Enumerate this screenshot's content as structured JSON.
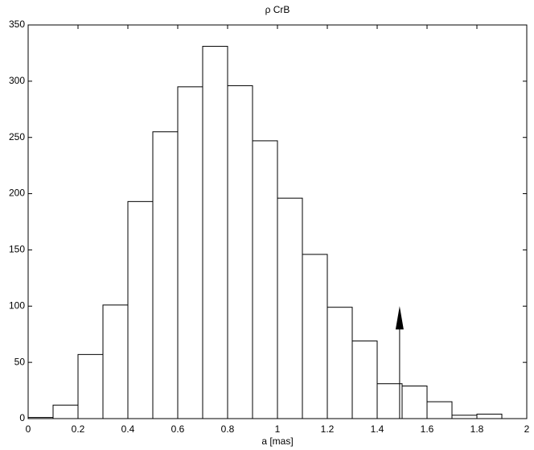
{
  "chart_data": {
    "type": "histogram",
    "title": "ρ CrB",
    "xlabel": "a [mas]",
    "bins": [
      0,
      0.1,
      0.2,
      0.3,
      0.4,
      0.5,
      0.6,
      0.7,
      0.8,
      0.9,
      1.0,
      1.1,
      1.2,
      1.3,
      1.4,
      1.5,
      1.6,
      1.7,
      1.8,
      1.9
    ],
    "values": [
      1,
      12,
      57,
      101,
      193,
      255,
      295,
      331,
      296,
      247,
      196,
      146,
      99,
      69,
      31,
      29,
      15,
      3,
      4
    ],
    "color": "#ffffff",
    "edgecolor": "#000000",
    "xlim": [
      0,
      2
    ],
    "xticks": [
      0,
      0.2,
      0.4,
      0.6,
      0.8,
      1,
      1.2,
      1.4,
      1.6,
      1.8,
      2
    ],
    "ylim": [
      0,
      350
    ],
    "yticks": [
      0,
      50,
      100,
      150,
      200,
      250,
      300,
      350
    ],
    "arrow": {
      "x": 1.49,
      "y": 100
    }
  }
}
